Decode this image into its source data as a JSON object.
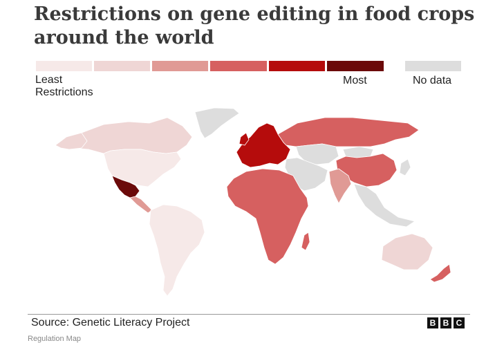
{
  "title": "Restrictions on gene editing in food crops around the world",
  "legend": {
    "colors": [
      "#f6e9e8",
      "#efd6d5",
      "#e09a95",
      "#d66060",
      "#b50c0c",
      "#6b0a0a"
    ],
    "no_data_color": "#dddddd",
    "least_line1": "Least",
    "least_line2": "Restrictions",
    "most": "Most",
    "no_data": "No data"
  },
  "map": {
    "regions": [
      {
        "name": "Canada",
        "level": 1
      },
      {
        "name": "Greenland",
        "level": "no-data"
      },
      {
        "name": "United States",
        "level": 0
      },
      {
        "name": "Mexico",
        "level": 5
      },
      {
        "name": "Central America",
        "level": 2
      },
      {
        "name": "South America",
        "level": 0
      },
      {
        "name": "Europe",
        "level": 4
      },
      {
        "name": "Russia",
        "level": 3
      },
      {
        "name": "Central Asia",
        "level": "no-data"
      },
      {
        "name": "Middle East",
        "level": "no-data"
      },
      {
        "name": "China",
        "level": 3
      },
      {
        "name": "India",
        "level": 2
      },
      {
        "name": "Africa",
        "level": 3
      },
      {
        "name": "Southeast Asia",
        "level": "no-data"
      },
      {
        "name": "Australia",
        "level": 1
      },
      {
        "name": "New Zealand",
        "level": 3
      }
    ]
  },
  "source": "Source: Genetic Literacy Project",
  "logo": [
    "B",
    "B",
    "C"
  ],
  "caption": "Regulation Map"
}
